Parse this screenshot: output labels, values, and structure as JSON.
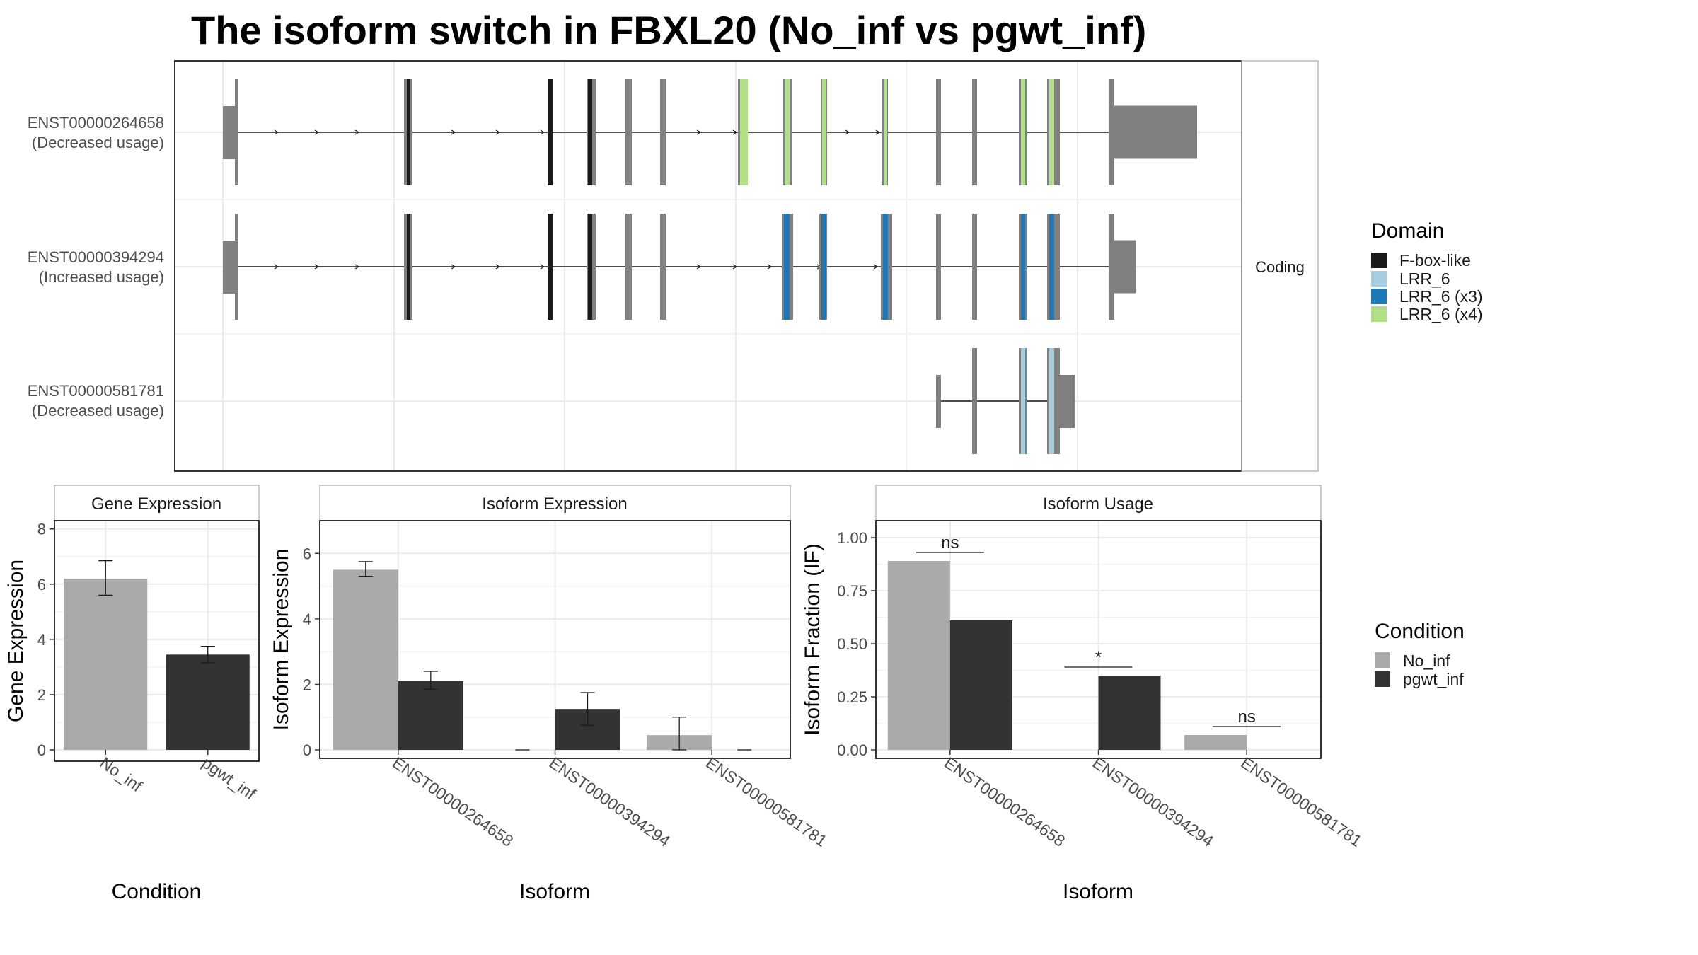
{
  "title": "The isoform switch in FBXL20 (No_inf vs pgwt_inf)",
  "colors": {
    "F-box-like": "#1a1a1a",
    "LRR_6": "#a6cee3",
    "LRR_6 (x3)": "#1f78b4",
    "LRR_6 (x4)": "#b2df8a",
    "exon": "#808080",
    "No_inf": "#aaaaaa",
    "pgwt_inf": "#333333"
  },
  "chart_data": [
    {
      "type": "other",
      "kind": "transcript structure",
      "strip_label": "Coding",
      "transcripts": [
        {
          "id": "ENST00000264658",
          "usage": "(Decreased usage)"
        },
        {
          "id": "ENST00000394294",
          "usage": "(Increased usage)"
        },
        {
          "id": "ENST00000581781",
          "usage": "(Decreased usage)"
        }
      ],
      "legend": {
        "title": "Domain",
        "entries": [
          "F-box-like",
          "LRR_6",
          "LRR_6 (x3)",
          "LRR_6 (x4)"
        ]
      }
    },
    {
      "type": "bar",
      "panel": "Gene Expression",
      "xlabel": "Condition",
      "ylabel": "Gene Expression",
      "categories": [
        "No_inf",
        "pgwt_inf"
      ],
      "values": [
        6.2,
        3.45
      ],
      "error": [
        [
          5.6,
          6.85
        ],
        [
          3.15,
          3.75
        ]
      ],
      "ylim": [
        0,
        8.3
      ],
      "yticks": [
        0,
        2,
        4,
        6,
        8
      ]
    },
    {
      "type": "bar",
      "panel": "Isoform Expression",
      "xlabel": "Isoform",
      "ylabel": "Isoform Expression",
      "categories": [
        "ENST00000264658",
        "ENST00000394294",
        "ENST00000581781"
      ],
      "series": [
        {
          "name": "No_inf",
          "values": [
            5.5,
            0,
            0.45
          ],
          "error": [
            [
              5.3,
              5.75
            ],
            null,
            [
              0.0,
              1.0
            ]
          ]
        },
        {
          "name": "pgwt_inf",
          "values": [
            2.1,
            1.25,
            0
          ],
          "error": [
            [
              1.85,
              2.4
            ],
            [
              0.75,
              1.75
            ],
            null
          ]
        }
      ],
      "ylim": [
        0,
        7.0
      ],
      "yticks": [
        0,
        2,
        4,
        6
      ]
    },
    {
      "type": "bar",
      "panel": "Isoform Usage",
      "xlabel": "Isoform",
      "ylabel": "Isoform Fraction (IF)",
      "categories": [
        "ENST00000264658",
        "ENST00000394294",
        "ENST00000581781"
      ],
      "series": [
        {
          "name": "No_inf",
          "values": [
            0.89,
            0,
            0.07
          ]
        },
        {
          "name": "pgwt_inf",
          "values": [
            0.61,
            0.35,
            0
          ]
        }
      ],
      "significance": [
        "ns",
        "*",
        "ns"
      ],
      "ylim": [
        0,
        1.08
      ],
      "yticks": [
        "0.00",
        "0.25",
        "0.50",
        "0.75",
        "1.00"
      ]
    }
  ],
  "condition_legend": {
    "title": "Condition",
    "entries": [
      "No_inf",
      "pgwt_inf"
    ]
  }
}
